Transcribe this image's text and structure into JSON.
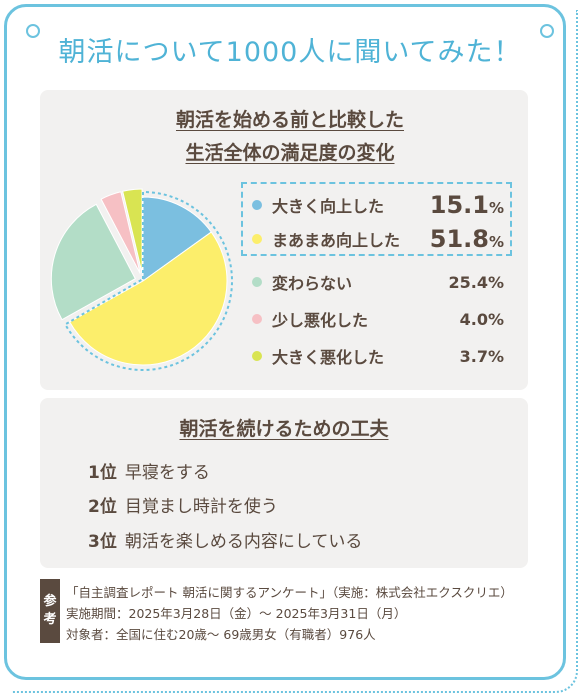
{
  "title": "朝活について1000人に聞いてみた！",
  "chart_data": {
    "type": "pie",
    "title_line1": "朝活を始める前と比較した",
    "title_line2": "生活全体の満足度の変化",
    "slices": [
      {
        "label": "大きく向上した",
        "value": 15.1,
        "display": "15.1",
        "color": "#7bbfe0",
        "highlighted": true
      },
      {
        "label": "まあまあ向上した",
        "value": 51.8,
        "display": "51.8",
        "color": "#fcee6b",
        "highlighted": true
      },
      {
        "label": "変わらない",
        "value": 25.4,
        "display": "25.4%",
        "color": "#b3ddc7",
        "highlighted": false
      },
      {
        "label": "少し悪化した",
        "value": 4.0,
        "display": "4.0%",
        "color": "#f6c0c4",
        "highlighted": false
      },
      {
        "label": "大きく悪化した",
        "value": 3.7,
        "display": "3.7%",
        "color": "#d9e452",
        "highlighted": false
      }
    ],
    "unit": "%"
  },
  "tips": {
    "title": "朝活を続けるための工夫",
    "items": [
      {
        "rank": "1位",
        "text": "早寝をする"
      },
      {
        "rank": "2位",
        "text": "目覚まし時計を使う"
      },
      {
        "rank": "3位",
        "text": "朝活を楽しめる内容にしている"
      }
    ]
  },
  "reference": {
    "tag_1": "参",
    "tag_2": "考",
    "line1": "「自主調査レポート 朝活に関するアンケート」（実施：株式会社エクスクリエ）",
    "line2": "実施期間：2025年3月28日（金）〜 2025年3月31日（月）",
    "line3": "対象者：全国に住む20歳〜 69歳男女（有職者）976人"
  }
}
